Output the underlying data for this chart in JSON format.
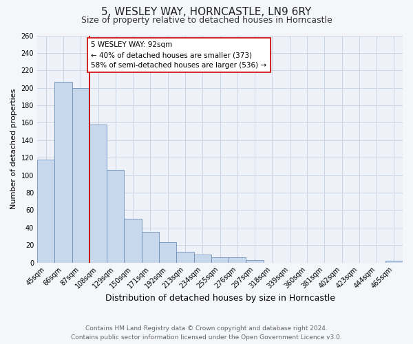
{
  "title": "5, WESLEY WAY, HORNCASTLE, LN9 6RY",
  "subtitle": "Size of property relative to detached houses in Horncastle",
  "xlabel": "Distribution of detached houses by size in Horncastle",
  "ylabel": "Number of detached properties",
  "bar_labels": [
    "45sqm",
    "66sqm",
    "87sqm",
    "108sqm",
    "129sqm",
    "150sqm",
    "171sqm",
    "192sqm",
    "213sqm",
    "234sqm",
    "255sqm",
    "276sqm",
    "297sqm",
    "318sqm",
    "339sqm",
    "360sqm",
    "381sqm",
    "402sqm",
    "423sqm",
    "444sqm",
    "465sqm"
  ],
  "bar_values": [
    118,
    207,
    200,
    158,
    106,
    50,
    35,
    23,
    12,
    9,
    6,
    6,
    3,
    0,
    0,
    0,
    0,
    0,
    0,
    0,
    2
  ],
  "bar_color": "#c8d8ec",
  "bar_edge_color": "#7090b8",
  "grid_color": "#c8d4e4",
  "background_color": "#eef2f8",
  "vline_color": "#cc0000",
  "annotation_title": "5 WESLEY WAY: 92sqm",
  "annotation_line1": "← 40% of detached houses are smaller (373)",
  "annotation_line2": "58% of semi-detached houses are larger (536) →",
  "annotation_box_color": "#ffffff",
  "annotation_box_edge": "#cc0000",
  "ylim": [
    0,
    260
  ],
  "yticks": [
    0,
    20,
    40,
    60,
    80,
    100,
    120,
    140,
    160,
    180,
    200,
    220,
    240,
    260
  ],
  "footer_line1": "Contains HM Land Registry data © Crown copyright and database right 2024.",
  "footer_line2": "Contains public sector information licensed under the Open Government Licence v3.0.",
  "title_fontsize": 11,
  "subtitle_fontsize": 9,
  "xlabel_fontsize": 9,
  "ylabel_fontsize": 8,
  "tick_fontsize": 7,
  "footer_fontsize": 6.5
}
